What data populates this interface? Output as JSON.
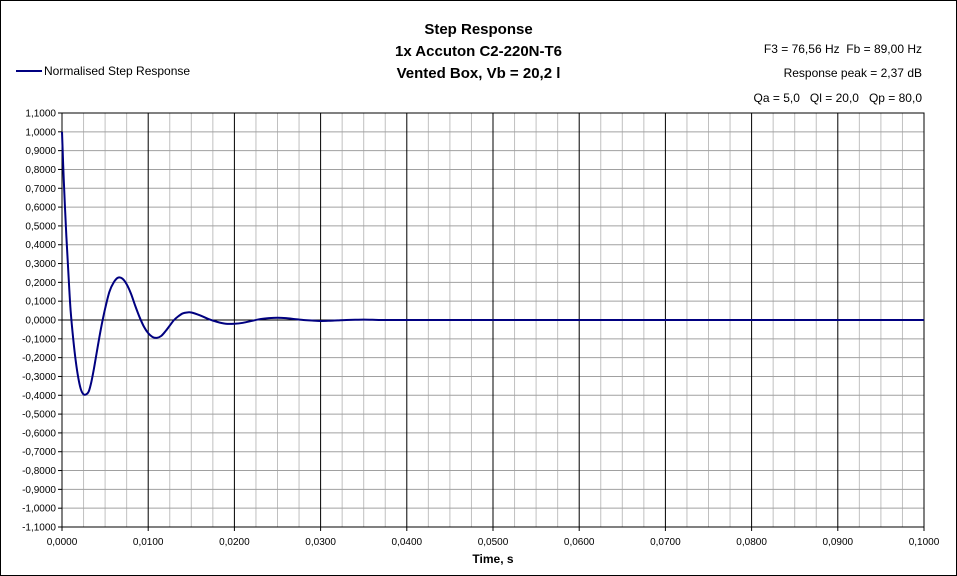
{
  "chart_data": {
    "type": "line",
    "title": [
      "Step Response",
      "1x Accuton C2-220N-T6",
      "Vented Box, Vb = 20,2 l"
    ],
    "annotations": [
      "F3 = 76,56 Hz  Fb = 89,00 Hz",
      "Response peak = 2,37 dB",
      "Qa = 5,0   Ql = 20,0   Qp = 80,0"
    ],
    "xlabel": "Time, s",
    "ylabel": "",
    "xlim": [
      0,
      0.1
    ],
    "ylim": [
      -1.1,
      1.1
    ],
    "grid": true,
    "legend_position": "top-left",
    "x_ticks": [
      "0,0000",
      "0,0100",
      "0,0200",
      "0,0300",
      "0,0400",
      "0,0500",
      "0,0600",
      "0,0700",
      "0,0800",
      "0,0900",
      "0,1000"
    ],
    "y_ticks": [
      "1,1000",
      "1,0000",
      "0,9000",
      "0,8000",
      "0,7000",
      "0,6000",
      "0,5000",
      "0,4000",
      "0,3000",
      "0,2000",
      "0,1000",
      "0,0000",
      "-0,1000",
      "-0,2000",
      "-0,3000",
      "-0,4000",
      "-0,5000",
      "-0,6000",
      "-0,7000",
      "-0,8000",
      "-0,9000",
      "-1,0000",
      "-1,1000"
    ],
    "series": [
      {
        "name": "Normalised Step Response",
        "color": "#000080",
        "x": [
          0,
          0.0002,
          0.0005,
          0.0008,
          0.001,
          0.0013,
          0.0016,
          0.0019,
          0.0022,
          0.0025,
          0.0028,
          0.0031,
          0.0034,
          0.0037,
          0.004,
          0.0045,
          0.005,
          0.0055,
          0.006,
          0.0065,
          0.007,
          0.0075,
          0.008,
          0.0085,
          0.009,
          0.0095,
          0.01,
          0.0105,
          0.011,
          0.0115,
          0.012,
          0.0125,
          0.013,
          0.0135,
          0.014,
          0.0145,
          0.015,
          0.016,
          0.017,
          0.018,
          0.019,
          0.02,
          0.021,
          0.022,
          0.023,
          0.024,
          0.025,
          0.026,
          0.027,
          0.028,
          0.029,
          0.03,
          0.031,
          0.032,
          0.033,
          0.034,
          0.035,
          0.036,
          0.037,
          0.038,
          0.04,
          0.045,
          0.05,
          0.06,
          0.07,
          0.08,
          0.09,
          0.1
        ],
        "y": [
          1.0,
          0.75,
          0.45,
          0.2,
          0.05,
          -0.1,
          -0.22,
          -0.31,
          -0.37,
          -0.395,
          -0.395,
          -0.38,
          -0.33,
          -0.26,
          -0.18,
          -0.05,
          0.06,
          0.15,
          0.2,
          0.225,
          0.22,
          0.19,
          0.14,
          0.075,
          0.015,
          -0.035,
          -0.07,
          -0.09,
          -0.095,
          -0.085,
          -0.06,
          -0.03,
          0.0,
          0.02,
          0.035,
          0.04,
          0.04,
          0.025,
          0.005,
          -0.01,
          -0.02,
          -0.02,
          -0.015,
          -0.005,
          0.005,
          0.01,
          0.012,
          0.01,
          0.005,
          0.0,
          -0.003,
          -0.005,
          -0.004,
          -0.002,
          0.0,
          0.001,
          0.002,
          0.001,
          0.0,
          0.0,
          0.0,
          0.0,
          0.0,
          0.0,
          0.0,
          0.0,
          0.0,
          0.0
        ]
      }
    ]
  }
}
